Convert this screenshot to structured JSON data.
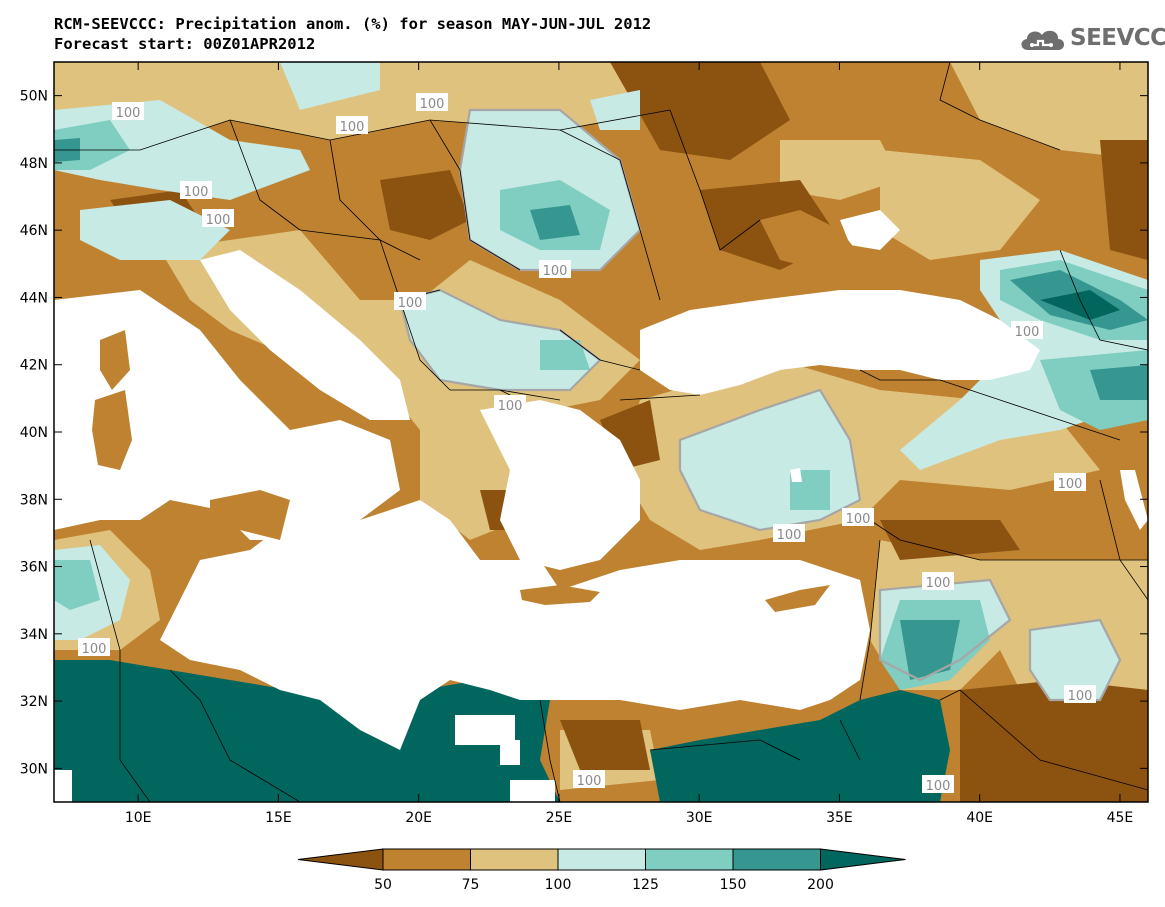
{
  "title": {
    "line1": "RCM-SEEVCCC: Precipitation anom. (%) for season MAY-JUN-JUL 2012",
    "line2": "Forecast start: 00Z01APR2012"
  },
  "logo": {
    "text": "SEEVCCC",
    "icon": "cloud-icon"
  },
  "map": {
    "lon_range": [
      7,
      46
    ],
    "lat_range": [
      29,
      51
    ],
    "lon_ticks": [
      "10E",
      "15E",
      "20E",
      "25E",
      "30E",
      "35E",
      "40E",
      "45E"
    ],
    "lat_ticks": [
      "30N",
      "32N",
      "34N",
      "36N",
      "38N",
      "40N",
      "42N",
      "44N",
      "46N",
      "48N",
      "50N"
    ],
    "contour_label": "100"
  },
  "colorbar": {
    "levels": [
      "50",
      "75",
      "100",
      "125",
      "150",
      "200"
    ],
    "colors": [
      "#8b5210",
      "#bf8231",
      "#dfc27d",
      "#c7eae5",
      "#80cdc1",
      "#35978f",
      "#01665e"
    ]
  },
  "colors": {
    "sea": "#ffffff",
    "border": "#000000",
    "contour": "#a6a6a6"
  }
}
